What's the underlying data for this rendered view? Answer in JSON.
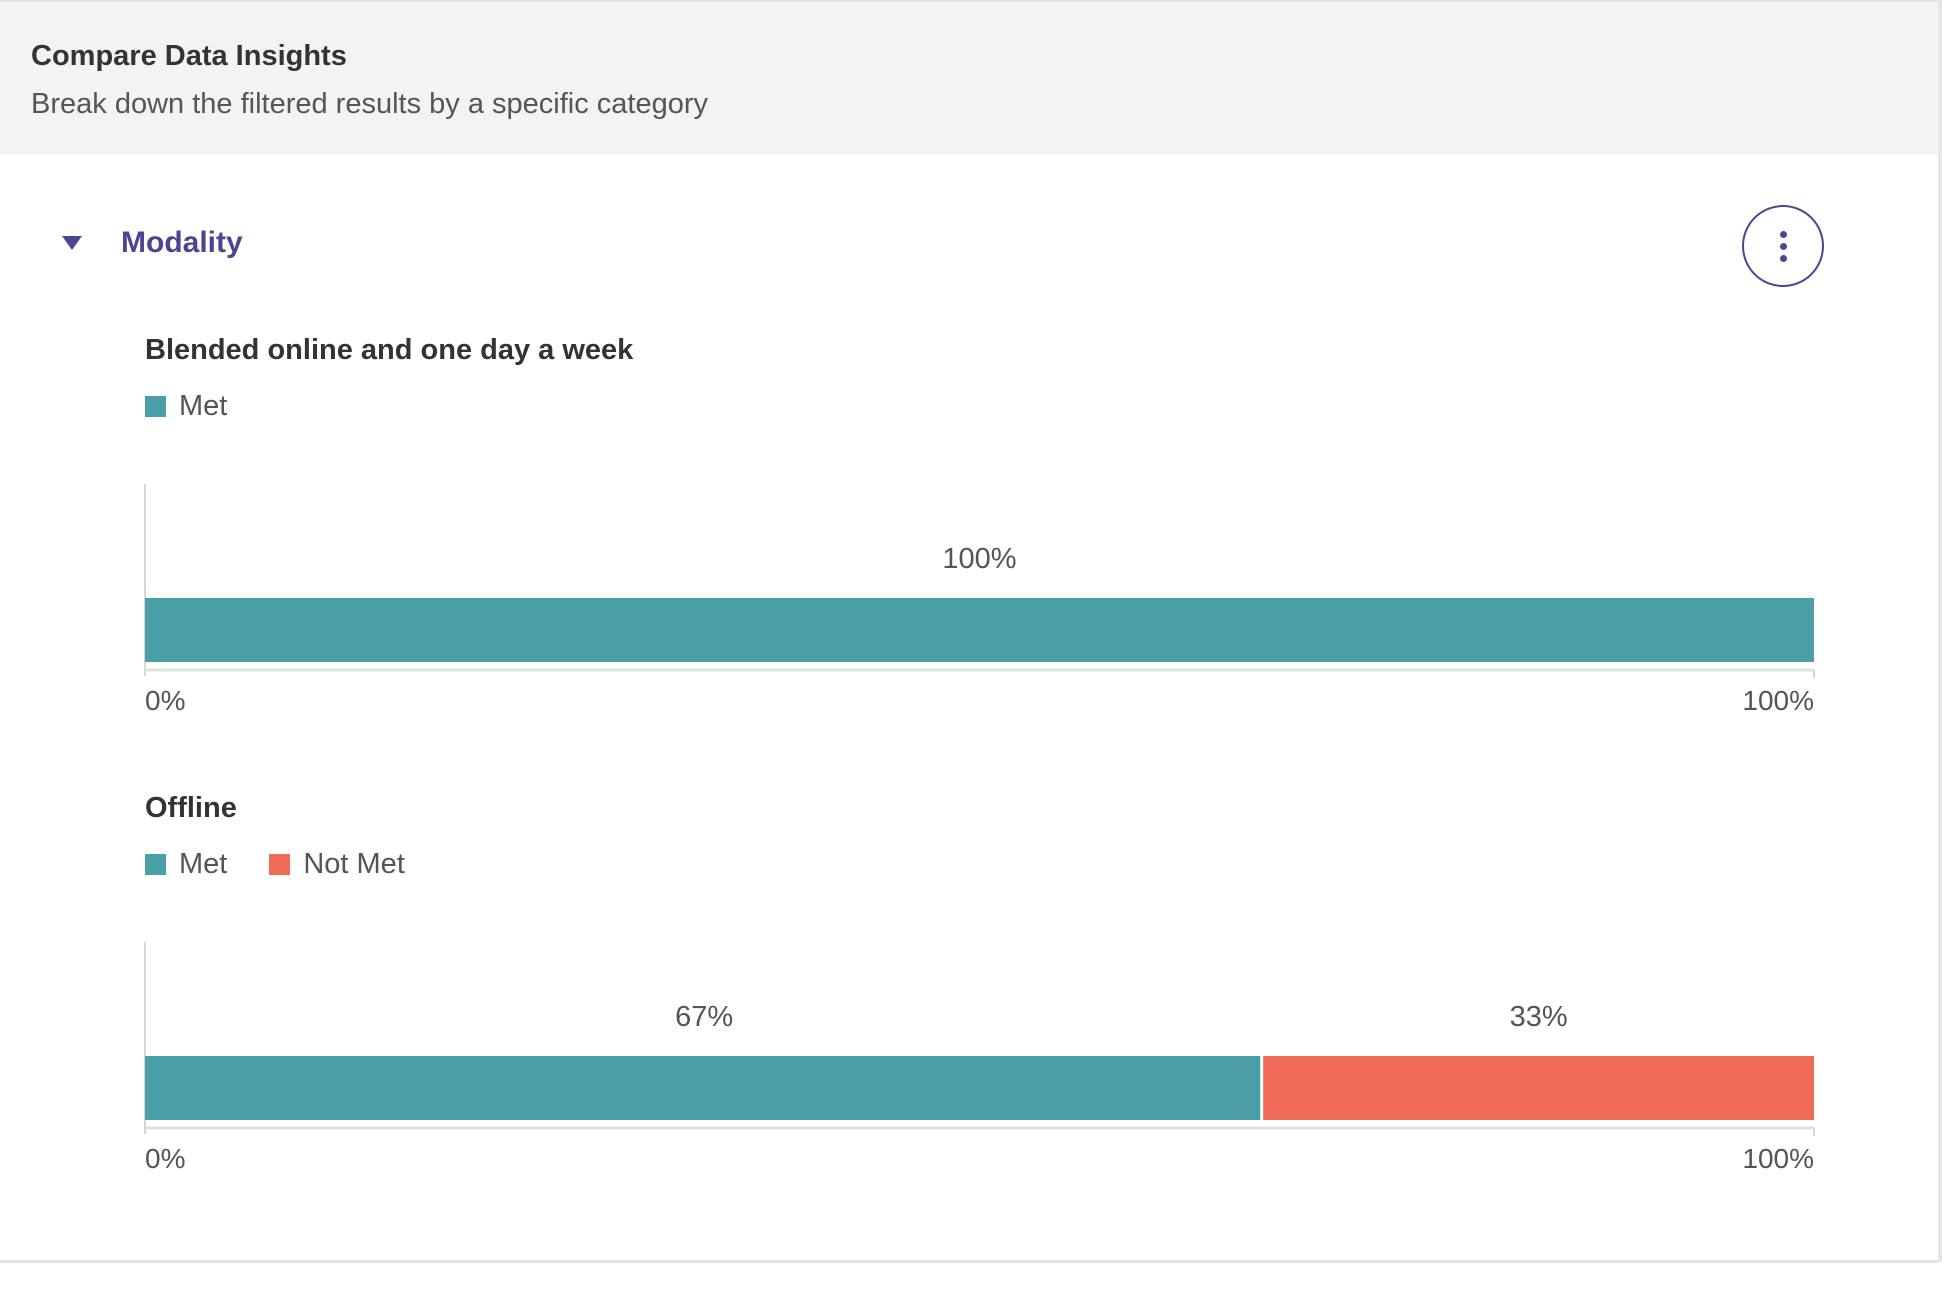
{
  "panel": {
    "title": "Compare Data Insights",
    "subtitle": "Break down the filtered results by a specific category"
  },
  "section": {
    "label": "Modality",
    "expanded": true,
    "toggle_icon": "caret-down-icon",
    "menu_icon": "more-vertical-icon"
  },
  "colors": {
    "met": "#4a9ea6",
    "not_met": "#ef6b57",
    "accent": "#4b4592"
  },
  "chart_data": [
    {
      "type": "bar",
      "orientation": "horizontal-stacked-percent",
      "title": "Blended online and one day a week",
      "legend": [
        "Met"
      ],
      "series": [
        {
          "name": "Met",
          "value": 100,
          "label": "100%"
        }
      ],
      "axis": {
        "min": 0,
        "max": 100,
        "ticks": [
          "0%",
          "100%"
        ]
      }
    },
    {
      "type": "bar",
      "orientation": "horizontal-stacked-percent",
      "title": "Offline",
      "legend": [
        "Met",
        "Not Met"
      ],
      "series": [
        {
          "name": "Met",
          "value": 67,
          "label": "67%"
        },
        {
          "name": "Not Met",
          "value": 33,
          "label": "33%"
        }
      ],
      "axis": {
        "min": 0,
        "max": 100,
        "ticks": [
          "0%",
          "100%"
        ]
      }
    }
  ]
}
